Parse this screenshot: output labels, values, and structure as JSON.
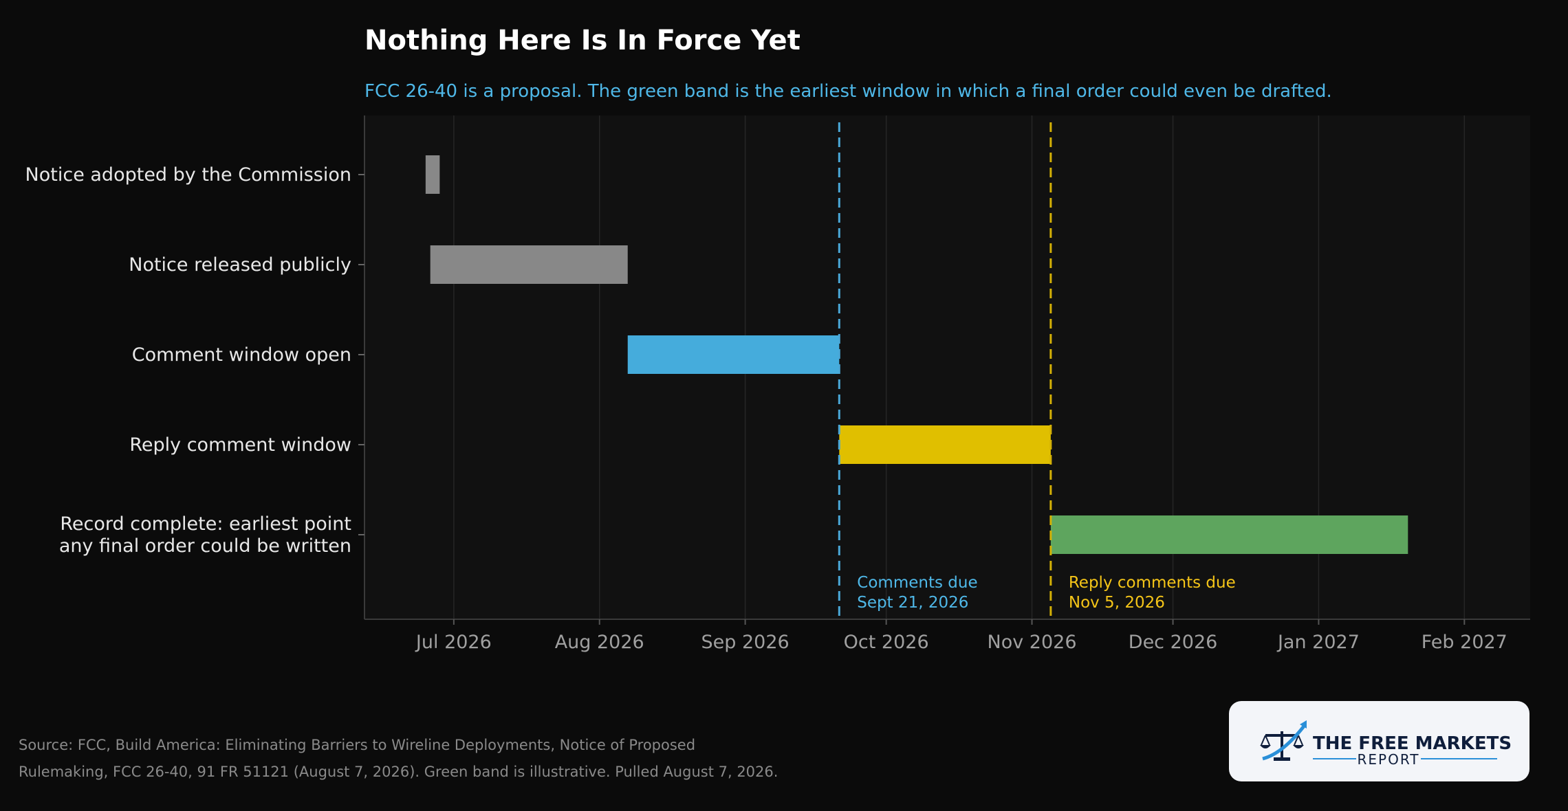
{
  "chart_data": {
    "type": "gantt",
    "title": "Nothing Here Is In Force Yet",
    "subtitle": "FCC 26-40 is a proposal. The green band is the earliest window in which a final order could even be drafted.",
    "tasks": [
      {
        "label": [
          "Notice adopted by the Commission"
        ],
        "start": "2026-06-25",
        "end": "2026-06-28",
        "color": "#888888"
      },
      {
        "label": [
          "Notice released publicly"
        ],
        "start": "2026-06-26",
        "end": "2026-08-07",
        "color": "#888888"
      },
      {
        "label": [
          "Comment window open"
        ],
        "start": "2026-08-07",
        "end": "2026-09-21",
        "color": "#45acdc"
      },
      {
        "label": [
          "Reply comment window"
        ],
        "start": "2026-09-21",
        "end": "2026-11-05",
        "color": "#e0bf00"
      },
      {
        "label": [
          "Record complete: earliest point",
          "any final order could be written"
        ],
        "start": "2026-11-05",
        "end": "2027-01-20",
        "color": "#5ea55e"
      }
    ],
    "markers": [
      {
        "date": "2026-09-21",
        "color": "#4aa8d8",
        "text": [
          "Comments due",
          "Sept 21, 2026"
        ],
        "text_color": "#4fb8e8"
      },
      {
        "date": "2026-11-05",
        "color": "#d4b106",
        "text": [
          "Reply comments due",
          "Nov 5, 2026"
        ],
        "text_color": "#f5c518"
      }
    ],
    "x_ticks": [
      {
        "date": "2026-07-01",
        "label": "Jul 2026"
      },
      {
        "date": "2026-08-01",
        "label": "Aug 2026"
      },
      {
        "date": "2026-09-01",
        "label": "Sep 2026"
      },
      {
        "date": "2026-10-01",
        "label": "Oct 2026"
      },
      {
        "date": "2026-11-01",
        "label": "Nov 2026"
      },
      {
        "date": "2026-12-01",
        "label": "Dec 2026"
      },
      {
        "date": "2027-01-01",
        "label": "Jan 2027"
      },
      {
        "date": "2027-02-01",
        "label": "Feb 2027"
      }
    ],
    "xlim": [
      "2026-06-12",
      "2027-02-15"
    ],
    "grid": "vertical",
    "background": "#111111"
  },
  "source": {
    "lines": [
      "Source: FCC, Build America: Eliminating Barriers to Wireline Deployments, Notice of Proposed",
      "Rulemaking, FCC 26-40, 91 FR 51121 (August 7, 2026). Green band is illustrative. Pulled August 7, 2026."
    ]
  },
  "logo": {
    "line1": "THE FREE MARKETS",
    "line2": "REPORT",
    "icon": "scales-of-justice-icon"
  }
}
